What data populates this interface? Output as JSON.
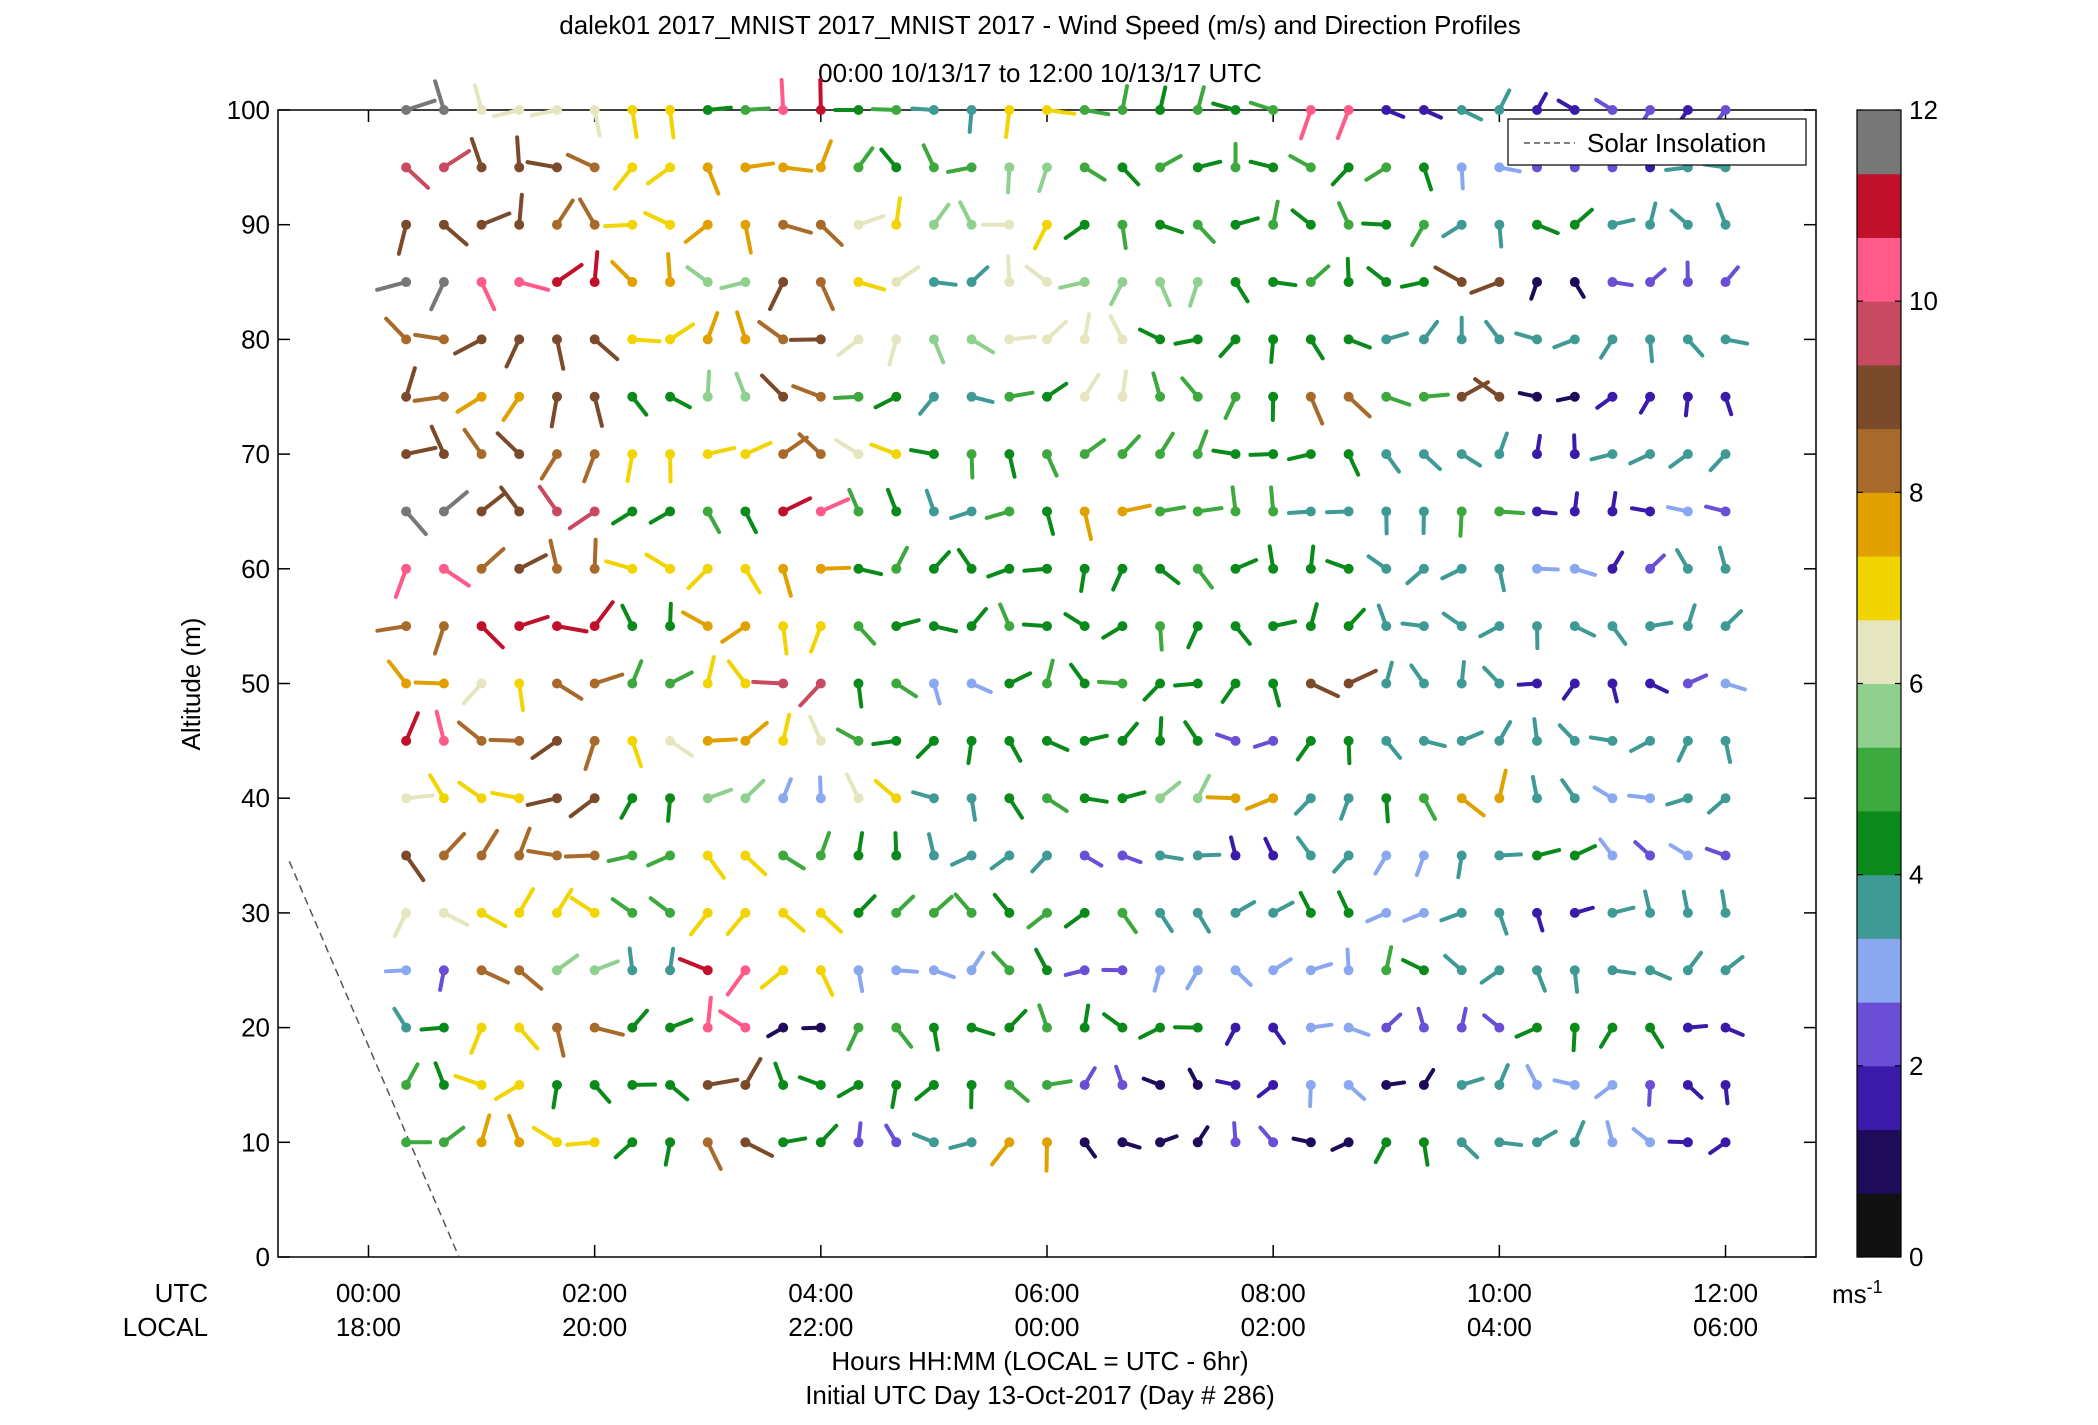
{
  "title_line1": "dalek01 2017_MNIST 2017_MNIST 2017 - Wind Speed (m/s) and Direction Profiles",
  "title_line2": "00:00 10/13/17 to 12:00 10/13/17  UTC",
  "row_label_utc": "UTC",
  "row_label_local": "LOCAL",
  "xlabel_line1": "Hours HH:MM  (LOCAL = UTC - 6hr)",
  "xlabel_line2": "Initial UTC Day 13-Oct-2017 (Day # 286)",
  "legend_label": "Solar Insolation",
  "colorbar_unit": "ms-1",
  "chart_data": {
    "type": "scatter",
    "ylabel": "Altitude (m)",
    "ylim": [
      0,
      100
    ],
    "xlim_hours": [
      -0.8,
      12.8
    ],
    "yticks": [
      0,
      10,
      20,
      30,
      40,
      50,
      60,
      70,
      80,
      90,
      100
    ],
    "utc_ticks": [
      "00:00",
      "02:00",
      "04:00",
      "06:00",
      "08:00",
      "10:00",
      "12:00"
    ],
    "local_ticks": [
      "18:00",
      "20:00",
      "22:00",
      "00:00",
      "02:00",
      "04:00",
      "06:00"
    ],
    "utc_tick_hours": [
      0,
      2,
      4,
      6,
      8,
      10,
      12
    ],
    "colorbar": {
      "min": 0,
      "max": 12,
      "ticks": [
        0,
        2,
        4,
        6,
        8,
        10,
        12
      ]
    },
    "colormap": [
      "#111111",
      "#1e0b5a",
      "#3a1aa8",
      "#6a4fd6",
      "#8aa8f0",
      "#3f9a95",
      "#0a8a1a",
      "#3da83d",
      "#8fd08f",
      "#e5e5c0",
      "#f1d400",
      "#e0a000",
      "#a86a2a",
      "#7a4a2a",
      "#c84a60",
      "#ff5a8a",
      "#c0102a",
      "#777777"
    ],
    "solar_insolation": {
      "x_hours": [
        -0.7,
        0.8
      ],
      "y": [
        34.5,
        0
      ],
      "style": "dashed",
      "color": "#555555"
    },
    "series": [
      {
        "name": "Wind barbs",
        "x_hours": [
          0.333,
          0.667,
          1.0,
          1.333,
          1.667,
          2.0,
          2.333,
          2.667,
          3.0,
          3.333,
          3.667,
          4.0,
          4.333,
          4.667,
          5.0,
          5.333,
          5.667,
          6.0,
          6.333,
          6.667,
          7.0,
          7.333,
          7.667,
          8.0,
          8.333,
          8.667,
          9.0,
          9.333,
          9.667,
          10.0,
          10.333,
          10.667,
          11.0,
          11.333,
          11.667,
          12.0
        ],
        "altitudes": [
          10,
          15,
          20,
          25,
          30,
          35,
          40,
          45,
          50,
          55,
          60,
          65,
          70,
          75,
          80,
          85,
          90,
          95,
          100
        ],
        "speed_m_s_by_period": [
          [
            5.0,
            4.5,
            3.8,
            2.5,
            6.2,
            8.5,
            6.5,
            10.5,
            7.5,
            8.0,
            10.0,
            11.5,
            9.0,
            8.5,
            8.0,
            11.5,
            9.0,
            9.5,
            11.8
          ],
          [
            7.5,
            7.0,
            7.0,
            8.0,
            7.0,
            8.0,
            7.0,
            8.0,
            6.5,
            11.0,
            8.5,
            9.0,
            8.5,
            7.5,
            9.0,
            10.0,
            9.0,
            9.0,
            6.0
          ],
          [
            7.0,
            4.0,
            8.0,
            5.5,
            7.0,
            8.0,
            9.0,
            8.5,
            8.0,
            11.0,
            8.0,
            9.5,
            8.0,
            9.0,
            9.0,
            11.0,
            8.0,
            8.5,
            6.0
          ],
          [
            4.0,
            4.0,
            4.0,
            3.5,
            5.0,
            5.0,
            4.0,
            6.5,
            5.0,
            4.0,
            7.0,
            4.0,
            7.0,
            4.0,
            7.0,
            7.5,
            7.0,
            7.0,
            7.0
          ],
          [
            8.5,
            9.0,
            10.0,
            10.5,
            7.0,
            7.0,
            5.5,
            7.5,
            7.0,
            7.5,
            7.0,
            4.5,
            7.0,
            5.5,
            7.5,
            5.5,
            7.5,
            7.5,
            4.5
          ],
          [
            4.0,
            4.0,
            0.8,
            7.0,
            7.0,
            5.0,
            2.8,
            6.5,
            9.5,
            7.0,
            7.5,
            10.5,
            8.0,
            8.5,
            8.5,
            8.5,
            8.0,
            7.5,
            10.5
          ],
          [
            2.0,
            4.0,
            5.0,
            3.0,
            4.5,
            4.0,
            6.5,
            4.5,
            4.5,
            4.5,
            4.5,
            4.5,
            6.5,
            4.5,
            6.0,
            6.5,
            6.5,
            4.5,
            4.5
          ],
          [
            3.5,
            4.0,
            4.0,
            3.0,
            5.0,
            3.5,
            3.5,
            4.0,
            3.0,
            4.0,
            4.0,
            3.5,
            4.5,
            3.5,
            5.5,
            3.5,
            5.5,
            5.0,
            3.5
          ],
          [
            7.5,
            5.0,
            4.5,
            4.5,
            4.5,
            3.5,
            4.5,
            4.0,
            4.5,
            4.5,
            4.0,
            4.5,
            4.5,
            4.5,
            6.0,
            6.0,
            6.5,
            5.5,
            7.0
          ],
          [
            1.0,
            2.0,
            4.0,
            2.0,
            4.5,
            2.0,
            4.0,
            4.0,
            4.5,
            4.0,
            4.0,
            7.5,
            5.0,
            6.0,
            6.0,
            5.5,
            4.5,
            4.5,
            5.0
          ],
          [
            1.0,
            0.8,
            4.0,
            3.0,
            3.5,
            3.5,
            5.5,
            4.0,
            4.0,
            4.5,
            4.5,
            5.0,
            5.0,
            5.0,
            4.0,
            5.5,
            4.5,
            4.5,
            4.5
          ],
          [
            2.0,
            1.5,
            1.5,
            3.0,
            3.5,
            1.5,
            7.5,
            2.0,
            4.0,
            4.0,
            4.0,
            5.0,
            4.0,
            4.5,
            4.0,
            4.0,
            4.5,
            4.5,
            4.5
          ],
          [
            1.0,
            3.0,
            3.0,
            3.0,
            4.0,
            3.5,
            3.5,
            4.0,
            9.0,
            4.0,
            4.0,
            3.5,
            4.0,
            8.0,
            4.0,
            4.5,
            4.5,
            4.5,
            10.0
          ],
          [
            4.0,
            1.0,
            2.0,
            4.5,
            3.0,
            3.0,
            4.5,
            3.5,
            3.5,
            3.5,
            3.5,
            3.5,
            3.5,
            5.0,
            3.5,
            4.0,
            4.5,
            4.5,
            1.5
          ],
          [
            3.5,
            3.5,
            2.0,
            3.5,
            3.5,
            3.5,
            7.5,
            3.5,
            3.5,
            3.5,
            3.5,
            5.0,
            3.5,
            9.0,
            3.5,
            9.0,
            3.5,
            3.0,
            3.5
          ],
          [
            3.5,
            3.0,
            4.0,
            3.5,
            1.5,
            4.0,
            3.5,
            3.5,
            1.5,
            3.5,
            3.0,
            1.5,
            1.5,
            0.8,
            3.5,
            0.8,
            4.0,
            2.0,
            1.5
          ],
          [
            3.0,
            2.5,
            4.0,
            3.5,
            3.5,
            2.5,
            3.0,
            3.5,
            1.5,
            3.5,
            1.8,
            1.5,
            3.5,
            1.5,
            3.5,
            2.0,
            3.5,
            1.8,
            2.0
          ],
          [
            1.5,
            1.5,
            1.5,
            3.5,
            3.5,
            2.5,
            3.5,
            3.5,
            2.5,
            3.5,
            3.5,
            2.5,
            3.5,
            1.5,
            3.5,
            2.0,
            3.5,
            3.5,
            1.8
          ]
        ]
      }
    ]
  }
}
